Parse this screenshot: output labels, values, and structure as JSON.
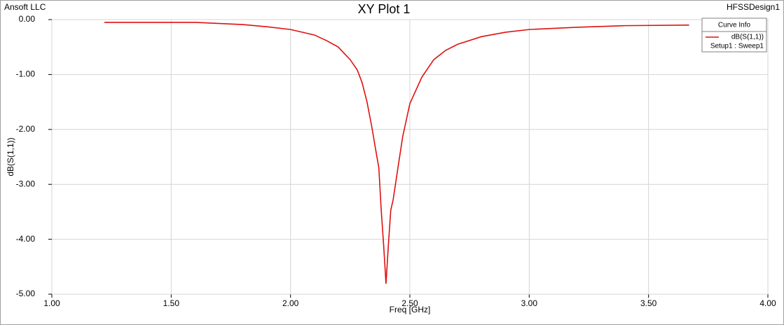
{
  "chart_data": {
    "type": "line",
    "company": "Ansoft LLC",
    "title": "XY Plot 1",
    "design": "HFSSDesign1",
    "xlabel": "Freq [GHz]",
    "ylabel": "dB(S(1,1))",
    "legend_title": "Curve Info",
    "legend": "upper right",
    "grid": true,
    "xlim": [
      1.0,
      4.0
    ],
    "ylim": [
      -5.0,
      0.0
    ],
    "xticks": [
      {
        "value": 1.0,
        "label": "1.00"
      },
      {
        "value": 1.5,
        "label": "1.50"
      },
      {
        "value": 2.0,
        "label": "2.00"
      },
      {
        "value": 2.5,
        "label": "2.50"
      },
      {
        "value": 3.0,
        "label": "3.00"
      },
      {
        "value": 3.5,
        "label": "3.50"
      },
      {
        "value": 4.0,
        "label": "4.00"
      }
    ],
    "yticks": [
      {
        "value": 0.0,
        "label": "0.00"
      },
      {
        "value": -1.0,
        "label": "-1.00"
      },
      {
        "value": -2.0,
        "label": "-2.00"
      },
      {
        "value": -3.0,
        "label": "-3.00"
      },
      {
        "value": -4.0,
        "label": "-4.00"
      },
      {
        "value": -5.0,
        "label": "-5.00"
      }
    ],
    "x": [
      1.22,
      1.4,
      1.6,
      1.8,
      1.9,
      2.0,
      2.1,
      2.15,
      2.2,
      2.25,
      2.28,
      2.3,
      2.32,
      2.34,
      2.36,
      2.37,
      2.38,
      2.39,
      2.4,
      2.41,
      2.42,
      2.43,
      2.45,
      2.47,
      2.5,
      2.55,
      2.6,
      2.65,
      2.7,
      2.8,
      2.9,
      3.0,
      3.2,
      3.4,
      3.67
    ],
    "series": [
      {
        "name": "dB(S(1,1))",
        "setup": "Setup1 : Sweep1",
        "color": "#e01010",
        "values": [
          -0.05,
          -0.05,
          -0.05,
          -0.09,
          -0.13,
          -0.18,
          -0.28,
          -0.38,
          -0.5,
          -0.73,
          -0.92,
          -1.15,
          -1.49,
          -1.94,
          -2.45,
          -2.7,
          -3.47,
          -4.1,
          -4.81,
          -4.1,
          -3.47,
          -3.28,
          -2.7,
          -2.13,
          -1.53,
          -1.05,
          -0.73,
          -0.56,
          -0.45,
          -0.31,
          -0.23,
          -0.18,
          -0.14,
          -0.11,
          -0.1
        ]
      }
    ]
  }
}
